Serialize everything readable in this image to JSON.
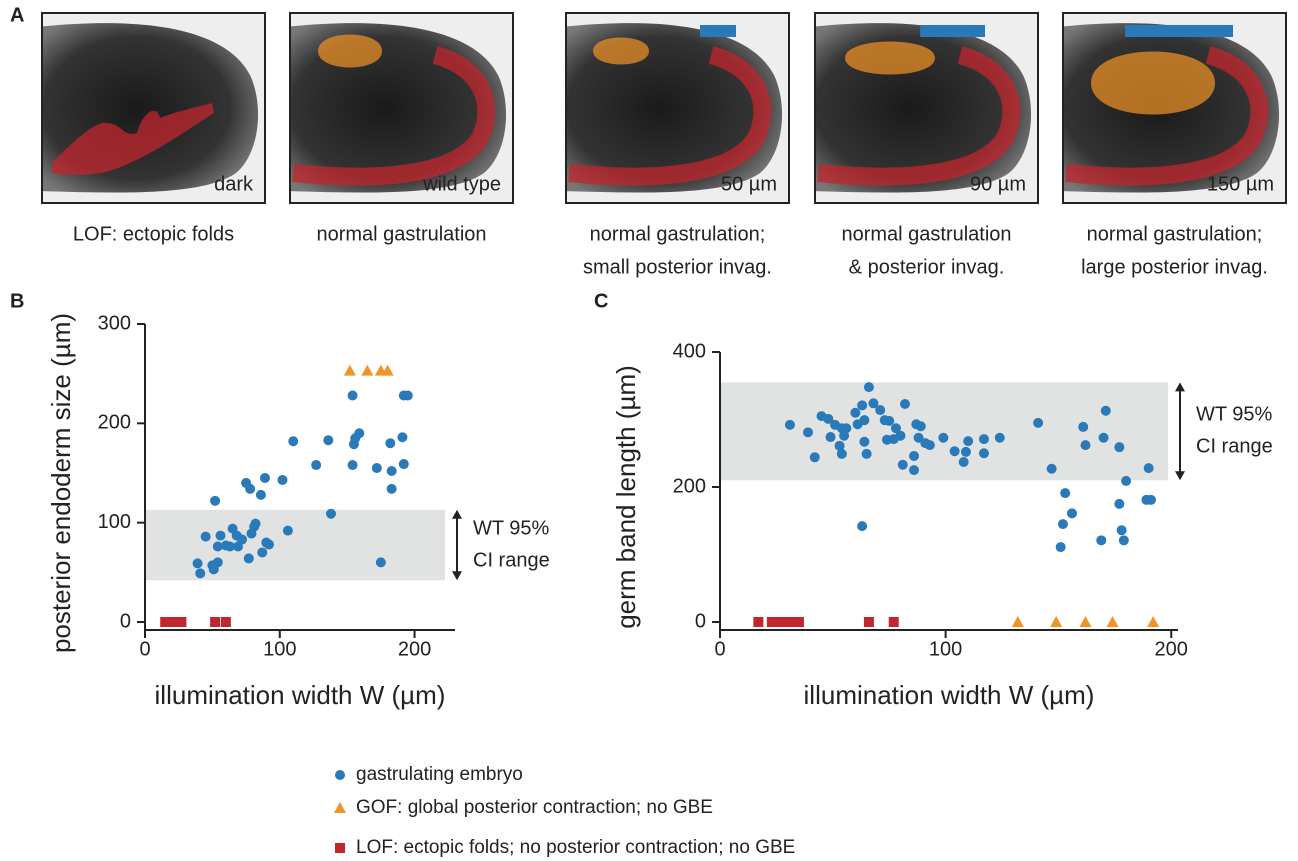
{
  "panel_letters": [
    "A",
    "B",
    "C"
  ],
  "images": [
    {
      "label": "dark",
      "caption": [
        "LOF: ectopic folds"
      ],
      "caption_color": "#c1272d"
    },
    {
      "label": "wild type",
      "caption": [
        "normal gastrulation"
      ]
    },
    {
      "label": "50 µm",
      "caption": [
        "normal gastrulation;",
        "small posterior invag."
      ],
      "scale_bar": {
        "value": 50,
        "label": "50 µm"
      },
      "scale_color": "#2a7ab9"
    },
    {
      "label": "90 µm",
      "caption": [
        "normal gastrulation",
        "& posterior invag."
      ],
      "scale_bar": {
        "value": 90,
        "label": "90 µm"
      },
      "scale_color": "#2a7ab9"
    },
    {
      "label": "150 µm",
      "caption": [
        "normal gastrulation;",
        "large posterior invag."
      ],
      "scale_bar": {
        "value": 150,
        "label": "150 µm"
      },
      "scale_color": "#2a7ab9"
    }
  ],
  "chart_data": [
    {
      "type": "scatter",
      "xlabel": "illumination width W (µm)",
      "ylabel": "posterior endoderm size (µm)",
      "xlim": [
        0,
        230
      ],
      "ylim": [
        0,
        300
      ],
      "xticks": [
        0,
        100,
        200
      ],
      "yticks": [
        0,
        100,
        200,
        300
      ],
      "band": [
        42,
        113
      ],
      "annotation": [
        "WT 95%",
        "CI range"
      ],
      "series": [
        {
          "name": "gastrulating embryo",
          "color": "#2a7ab9",
          "marker": "circle",
          "x": [
            39,
            41,
            45,
            50,
            51,
            52,
            54,
            54,
            56,
            60,
            63,
            65,
            68,
            69,
            72,
            75,
            77,
            78,
            79,
            81,
            82,
            86,
            87,
            89,
            90,
            92,
            102,
            106,
            110,
            127,
            136,
            138,
            154,
            154,
            155,
            156,
            159,
            172,
            175,
            182,
            183,
            183,
            191,
            192,
            192,
            195
          ],
          "values": [
            59,
            49,
            86,
            57,
            53,
            122,
            60,
            76,
            87,
            77,
            76,
            94,
            87,
            76,
            83,
            140,
            64,
            134,
            89,
            96,
            99,
            128,
            70,
            145,
            80,
            78,
            143,
            92,
            182,
            158,
            183,
            109,
            228,
            158,
            179,
            185,
            190,
            155,
            60,
            180,
            134,
            152,
            186,
            159,
            228,
            228
          ]
        },
        {
          "name": "GOF: global posterior contraction; no GBE",
          "color": "#f39325",
          "marker": "triangle",
          "x": [
            152,
            165,
            175,
            180
          ],
          "values": [
            253,
            253,
            253,
            253
          ]
        },
        {
          "name": "LOF: ectopic folds; no posterior contraction; no GBE",
          "color": "#c1272d",
          "marker": "square",
          "x": [
            15,
            18,
            21,
            24,
            27,
            52,
            60
          ],
          "values": [
            0,
            0,
            0,
            0,
            0,
            0,
            0
          ]
        }
      ]
    },
    {
      "type": "scatter",
      "xlabel": "illumination width W (µm)",
      "ylabel": "germ band length (µm)",
      "xlim": [
        0,
        203
      ],
      "ylim": [
        0,
        400
      ],
      "xticks": [
        0,
        100,
        200
      ],
      "yticks": [
        0,
        200,
        400
      ],
      "band": [
        210,
        355
      ],
      "annotation": [
        "WT 95%",
        "CI range"
      ],
      "series": [
        {
          "color": "#2a7ab9",
          "marker": "circle",
          "x": [
            31,
            39,
            42,
            45,
            48,
            49,
            51,
            53,
            54,
            54,
            55,
            56,
            60,
            61,
            63,
            63,
            64,
            64,
            65,
            66,
            68,
            71,
            73,
            74,
            75,
            77,
            78,
            80,
            81,
            82,
            86,
            86,
            87,
            88,
            89,
            91,
            93,
            99,
            104,
            108,
            109,
            110,
            117,
            117,
            124,
            141,
            147,
            161,
            162,
            151,
            152,
            153,
            156,
            170,
            171,
            169,
            177,
            177,
            178,
            179,
            180,
            189,
            190,
            191
          ],
          "values": [
            292,
            281,
            244,
            305,
            301,
            274,
            292,
            261,
            249,
            287,
            276,
            287,
            310,
            293,
            142,
            321,
            267,
            299,
            249,
            348,
            324,
            314,
            299,
            270,
            298,
            271,
            287,
            276,
            233,
            323,
            246,
            225,
            293,
            273,
            290,
            265,
            262,
            273,
            253,
            237,
            252,
            268,
            250,
            271,
            273,
            295,
            227,
            289,
            262,
            111,
            145,
            191,
            161,
            273,
            313,
            121,
            175,
            259,
            136,
            121,
            209,
            181,
            228,
            181
          ]
        },
        {
          "color": "#f39325",
          "marker": "triangle",
          "x": [
            132,
            149,
            162,
            174,
            192
          ],
          "values": [
            0,
            0,
            0,
            0,
            0
          ]
        },
        {
          "color": "#c1272d",
          "marker": "square",
          "x": [
            17,
            23,
            27,
            31,
            35,
            66,
            77
          ],
          "values": [
            0,
            0,
            0,
            0,
            0,
            0,
            0
          ]
        }
      ]
    }
  ]
}
